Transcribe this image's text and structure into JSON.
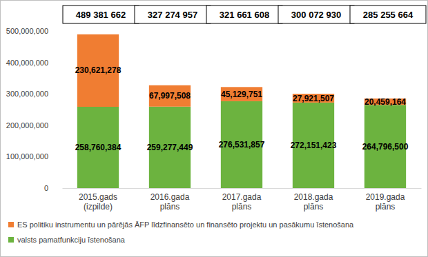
{
  "chart_data": {
    "type": "bar",
    "stacked": true,
    "data_labels": true,
    "grid": false,
    "legend": "bottom",
    "categories": [
      "2015.gads (izpilde)",
      "2016.gada plāns",
      "2017.gada plāns",
      "2018.gada plāns",
      "2019.gada plāns"
    ],
    "series": [
      {
        "name": "valsts pamatfunkciju īstenošana",
        "color": "#6cb33f",
        "values": [
          258760384,
          259277449,
          276531857,
          272151423,
          264796500
        ],
        "value_labels": [
          "258,760,384",
          "259,277,449",
          "276,531,857",
          "272,151,423",
          "264,796,500"
        ]
      },
      {
        "name": "ES politiku instrumentu un pārējās ĀFP līdzfinansēto un finansēto projektu un pasākumu īstenošana",
        "color": "#f07d32",
        "values": [
          230621278,
          67997508,
          45129751,
          27921507,
          20459164
        ],
        "value_labels": [
          "230,621,278",
          "67,997,508",
          "45,129,751",
          "27,921,507",
          "20,459,164"
        ]
      }
    ],
    "totals": {
      "values": [
        489381662,
        327274957,
        321661608,
        300072930,
        285255664
      ],
      "value_labels": [
        "489 381 662",
        "327 274 957",
        "321 661 608",
        "300 072 930",
        "285 255 664"
      ]
    },
    "ylim": [
      0,
      500000000
    ],
    "yticks": [
      0,
      {
        "value": 100000000,
        "label": "100,000,000"
      },
      {
        "value": 200000000,
        "label": "200,000,000"
      },
      {
        "value": 300000000,
        "label": "300,000,000"
      },
      {
        "value": 400000000,
        "label": "400,000,000"
      },
      {
        "value": 500000000,
        "label": "500,000,000"
      }
    ]
  }
}
